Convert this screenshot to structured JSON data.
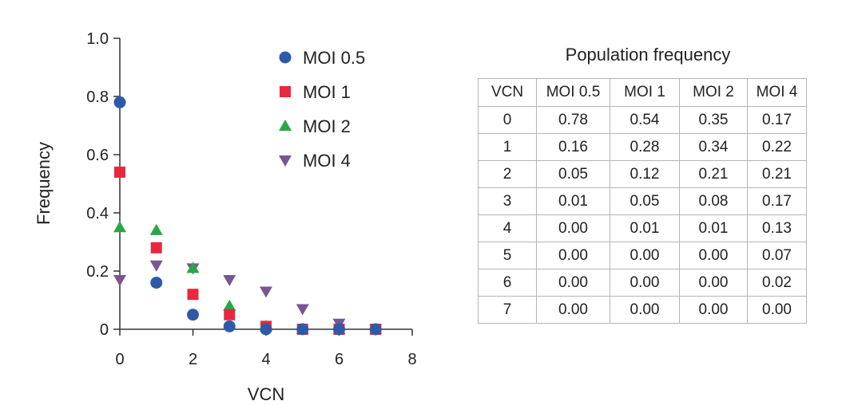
{
  "chart_data": [
    {
      "type": "scatter",
      "title": "",
      "xlabel": "VCN",
      "ylabel": "Frequency",
      "xlim": [
        0,
        8
      ],
      "ylim": [
        0,
        1.0
      ],
      "xticks": [
        "0",
        "2",
        "4",
        "6",
        "8"
      ],
      "yticks": [
        "0",
        "0.2",
        "0.4",
        "0.6",
        "0.8",
        "1.0"
      ],
      "grid": false,
      "legend_position": "top-right",
      "x": [
        0,
        1,
        2,
        3,
        4,
        5,
        6,
        7
      ],
      "series": [
        {
          "name": "MOI 4",
          "marker": "triangle-down",
          "color": "#7a5594",
          "values": [
            0.17,
            0.22,
            0.21,
            0.17,
            0.13,
            0.07,
            0.02,
            0.0
          ]
        },
        {
          "name": "MOI 2",
          "marker": "triangle-up",
          "color": "#27a845",
          "values": [
            0.35,
            0.34,
            0.21,
            0.08,
            0.01,
            0.0,
            0.0,
            0.0
          ]
        },
        {
          "name": "MOI 1",
          "marker": "square",
          "color": "#e8283e",
          "values": [
            0.54,
            0.28,
            0.12,
            0.05,
            0.01,
            0.0,
            0.0,
            0.0
          ]
        },
        {
          "name": "MOI 0.5",
          "marker": "circle",
          "color": "#2e5aa8",
          "values": [
            0.78,
            0.16,
            0.05,
            0.01,
            0.0,
            0.0,
            0.0,
            0.0
          ]
        }
      ],
      "legend_order": [
        "MOI 0.5",
        "MOI 1",
        "MOI 2",
        "MOI 4"
      ]
    },
    {
      "type": "table",
      "title": "Population frequency",
      "columns": [
        "VCN",
        "MOI 0.5",
        "MOI 1",
        "MOI 2",
        "MOI 4"
      ],
      "rows": [
        [
          "0",
          "0.78",
          "0.54",
          "0.35",
          "0.17"
        ],
        [
          "1",
          "0.16",
          "0.28",
          "0.34",
          "0.22"
        ],
        [
          "2",
          "0.05",
          "0.12",
          "0.21",
          "0.21"
        ],
        [
          "3",
          "0.01",
          "0.05",
          "0.08",
          "0.17"
        ],
        [
          "4",
          "0.00",
          "0.01",
          "0.01",
          "0.13"
        ],
        [
          "5",
          "0.00",
          "0.00",
          "0.00",
          "0.07"
        ],
        [
          "6",
          "0.00",
          "0.00",
          "0.00",
          "0.02"
        ],
        [
          "7",
          "0.00",
          "0.00",
          "0.00",
          "0.00"
        ]
      ]
    }
  ]
}
